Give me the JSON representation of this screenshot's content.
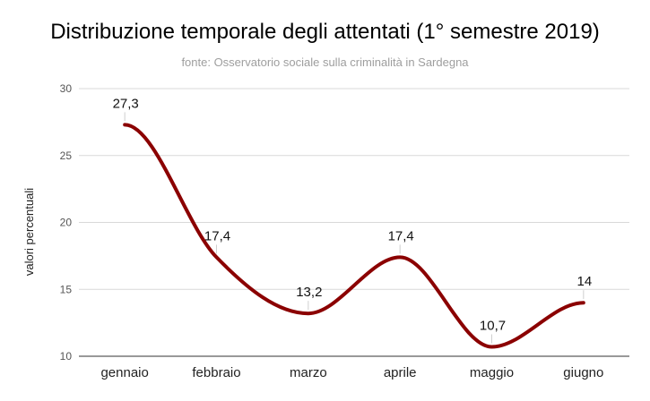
{
  "chart_data": {
    "type": "line",
    "title": "Distribuzione temporale degli attentati (1° semestre 2019)",
    "subtitle": "fonte: Osservatorio sociale sulla criminalità in Sardegna",
    "xlabel": "",
    "ylabel": "valori percentuali",
    "categories": [
      "gennaio",
      "febbraio",
      "marzo",
      "aprile",
      "maggio",
      "giugno"
    ],
    "series": [
      {
        "values": [
          27.3,
          17.4,
          13.2,
          17.4,
          10.7,
          14
        ],
        "labels": [
          "27,3",
          "17,4",
          "13,2",
          "17,4",
          "10,7",
          "14"
        ],
        "color": "#8b0000"
      }
    ],
    "ylim": [
      10,
      30
    ],
    "yticks": [
      10,
      15,
      20,
      25,
      30
    ],
    "grid": true,
    "smooth": true,
    "legend": "none"
  }
}
